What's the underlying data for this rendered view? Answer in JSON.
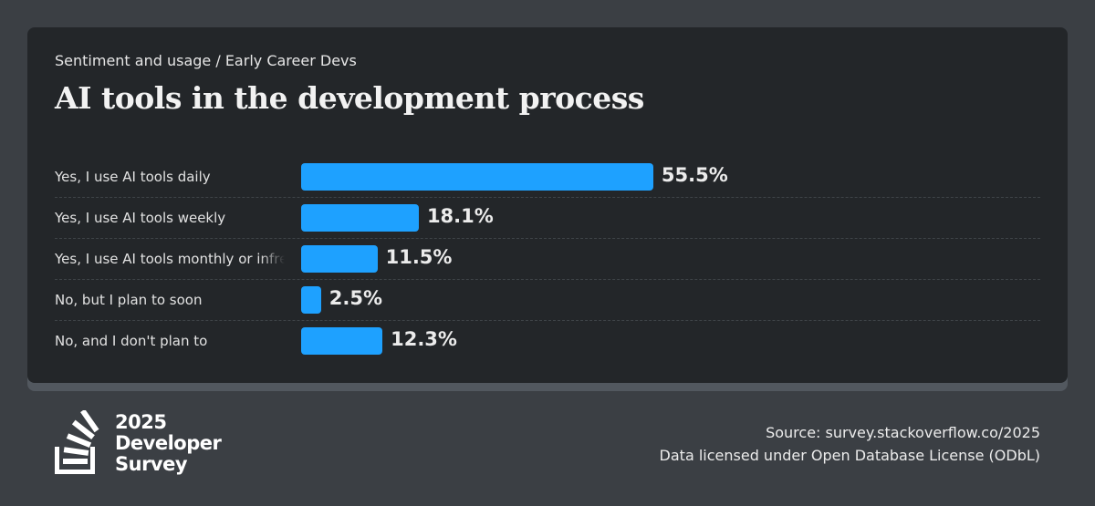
{
  "header": {
    "breadcrumb": "Sentiment and usage / Early Career Devs",
    "title": "AI tools in the development process"
  },
  "chart_data": {
    "type": "bar",
    "orientation": "horizontal",
    "title": "AI tools in the development process",
    "categories": [
      "Yes, I use AI tools daily",
      "Yes, I use AI tools weekly",
      "Yes, I use AI tools monthly or infrequently",
      "No, but I plan to soon",
      "No, and I don't plan to"
    ],
    "values": [
      55.5,
      18.1,
      11.5,
      2.5,
      12.3
    ],
    "labels": [
      "55.5%",
      "18.1%",
      "11.5%",
      "2.5%",
      "12.3%"
    ],
    "unit": "%",
    "xlim": [
      0,
      100
    ],
    "color": "#1ea1ff"
  },
  "footer": {
    "logo_lines": [
      "2025",
      "Developer",
      "Survey"
    ],
    "source": "Source: survey.stackoverflow.co/2025",
    "license": "Data licensed under Open Database License (ODbL)"
  }
}
